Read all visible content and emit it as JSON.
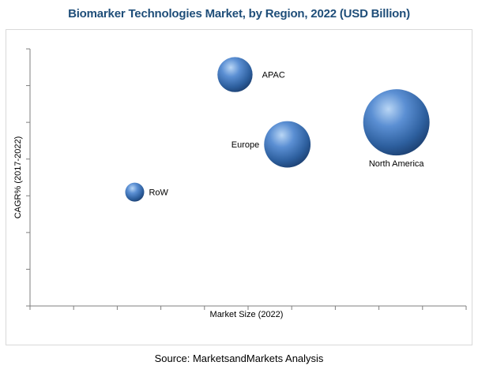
{
  "chart_data": {
    "type": "bubble",
    "title": "Biomarker Technologies Market, by Region, 2022 (USD Billion)",
    "xlabel": "Market Size (2022)",
    "ylabel": "CAGR% (2017-2022)",
    "grid": false,
    "legend": "none",
    "tick_labels_shown": false,
    "bubble_color": "#3b6fb6",
    "points": [
      {
        "label": "RoW",
        "x": 2.4,
        "y": 3.1,
        "size": 2.0
      },
      {
        "label": "APAC",
        "x": 4.7,
        "y": 6.3,
        "size": 3.7
      },
      {
        "label": "Europe",
        "x": 5.9,
        "y": 4.4,
        "size": 4.9
      },
      {
        "label": "North America",
        "x": 8.4,
        "y": 5.0,
        "size": 7.0
      }
    ]
  },
  "footer": {
    "source": "Source: MarketsandMarkets Analysis"
  }
}
